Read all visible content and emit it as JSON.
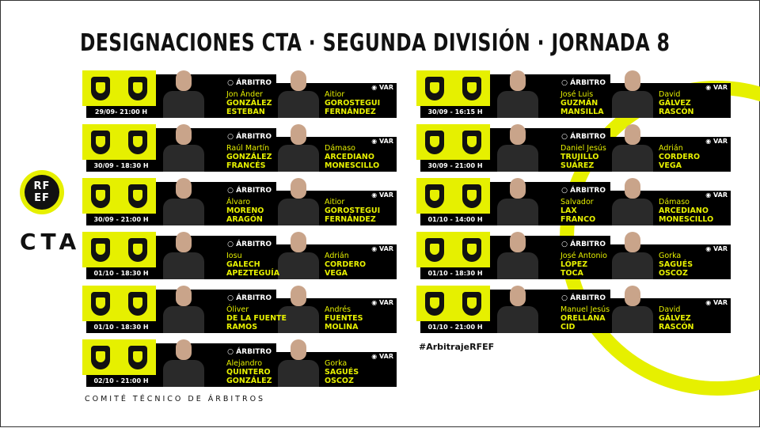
{
  "title": "DESIGNACIONES CTA · SEGUNDA DIVISIÓN · JORNADA 8",
  "logo": {
    "line1": "RF",
    "line2": "EF"
  },
  "cta": "CTA",
  "labels": {
    "referee": "ÁRBITRO",
    "var": "VAR"
  },
  "icons": {
    "referee": "whistle-icon",
    "var": "eye-icon"
  },
  "colors": {
    "accent": "#e6f000",
    "band": "#000000"
  },
  "matches": [
    {
      "date": "29/09- 21:00 H",
      "ref_first": "Jon Ánder",
      "ref_last1": "GONZÁLEZ",
      "ref_last2": "ESTEBAN",
      "var_first": "Aitior",
      "var_last1": "GOROSTEGUI",
      "var_last2": "FERNÁNDEZ"
    },
    {
      "date": "30/09 - 18:30 H",
      "ref_first": "Raúl Martín",
      "ref_last1": "GONZÁLEZ",
      "ref_last2": "FRANCÉS",
      "var_first": "Dámaso",
      "var_last1": "ARCEDIANO",
      "var_last2": "MONESCILLO"
    },
    {
      "date": "30/09 - 21:00 H",
      "ref_first": "Álvaro",
      "ref_last1": "MORENO",
      "ref_last2": "ARAGÓN",
      "var_first": "Aitior",
      "var_last1": "GOROSTEGUI",
      "var_last2": "FERNÁNDEZ"
    },
    {
      "date": "01/10 - 18:30 H",
      "ref_first": "Iosu",
      "ref_last1": "GALECH",
      "ref_last2": "APEZTEGUÍA",
      "var_first": "Adrián",
      "var_last1": "CORDERO",
      "var_last2": "VEGA"
    },
    {
      "date": "01/10 - 18:30 H",
      "ref_first": "Óliver",
      "ref_last1": "DE LA FUENTE",
      "ref_last2": "RAMOS",
      "var_first": "Andrés",
      "var_last1": "FUENTES",
      "var_last2": "MOLINA"
    },
    {
      "date": "02/10 - 21:00 H",
      "ref_first": "Alejandro",
      "ref_last1": "QUINTERO",
      "ref_last2": "GONZÁLEZ",
      "var_first": "Gorka",
      "var_last1": "SAGUÉS",
      "var_last2": "OSCOZ"
    },
    {
      "date": "30/09 - 16:15 H",
      "ref_first": "José Luis",
      "ref_last1": "GUZMÁN",
      "ref_last2": "MANSILLA",
      "var_first": "David",
      "var_last1": "GÁLVEZ",
      "var_last2": "RASCÓN"
    },
    {
      "date": "30/09 - 21:00 H",
      "ref_first": "Daniel Jesús",
      "ref_last1": "TRUJILLO",
      "ref_last2": "SUÁREZ",
      "var_first": "Adrián",
      "var_last1": "CORDERO",
      "var_last2": "VEGA"
    },
    {
      "date": "01/10 - 14:00 H",
      "ref_first": "Salvador",
      "ref_last1": "LAX",
      "ref_last2": "FRANCO",
      "var_first": "Dámaso",
      "var_last1": "ARCEDIANO",
      "var_last2": "MONESCILLO"
    },
    {
      "date": "01/10 - 18:30 H",
      "ref_first": "José Antonio",
      "ref_last1": "LÓPEZ",
      "ref_last2": "TOCA",
      "var_first": "Gorka",
      "var_last1": "SAGUÉS",
      "var_last2": "OSCOZ"
    },
    {
      "date": "01/10 - 21:00 H",
      "ref_first": "Manuel Jesús",
      "ref_last1": "ORELLANA",
      "ref_last2": "CID",
      "var_first": "David",
      "var_last1": "GÁLVEZ",
      "var_last2": "RASCÓN"
    }
  ],
  "footer": "COMITÉ TÉCNICO DE ÁRBITROS",
  "hashtag": "#ArbitrajeRFEF"
}
